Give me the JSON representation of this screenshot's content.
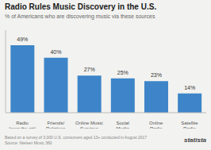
{
  "chart_data": {
    "type": "bar",
    "title": "Radio Rules Music Discovery in the U.S.",
    "subtitle": "% of Americans who are discovering music via these sources",
    "categories": [
      "Radio\n(over the air)",
      "Friends/\nRelatives",
      "Online Music\nServices",
      "Social\nMedia",
      "Online\nRadio",
      "Satellite\nRadio"
    ],
    "values": [
      49,
      40,
      27,
      25,
      23,
      14
    ],
    "value_labels": [
      "49%",
      "40%",
      "27%",
      "25%",
      "23%",
      "14%"
    ],
    "data_labels": true,
    "color": "#3d85c8",
    "ylim": [
      0,
      60
    ],
    "grid": false,
    "tick_labels": "x",
    "annotations": [
      "Based on a survey of 3,000 U.S. consumers aged 13+ conducted in August 2017\nSource: Nielsen Music 360",
      "statista"
    ]
  }
}
